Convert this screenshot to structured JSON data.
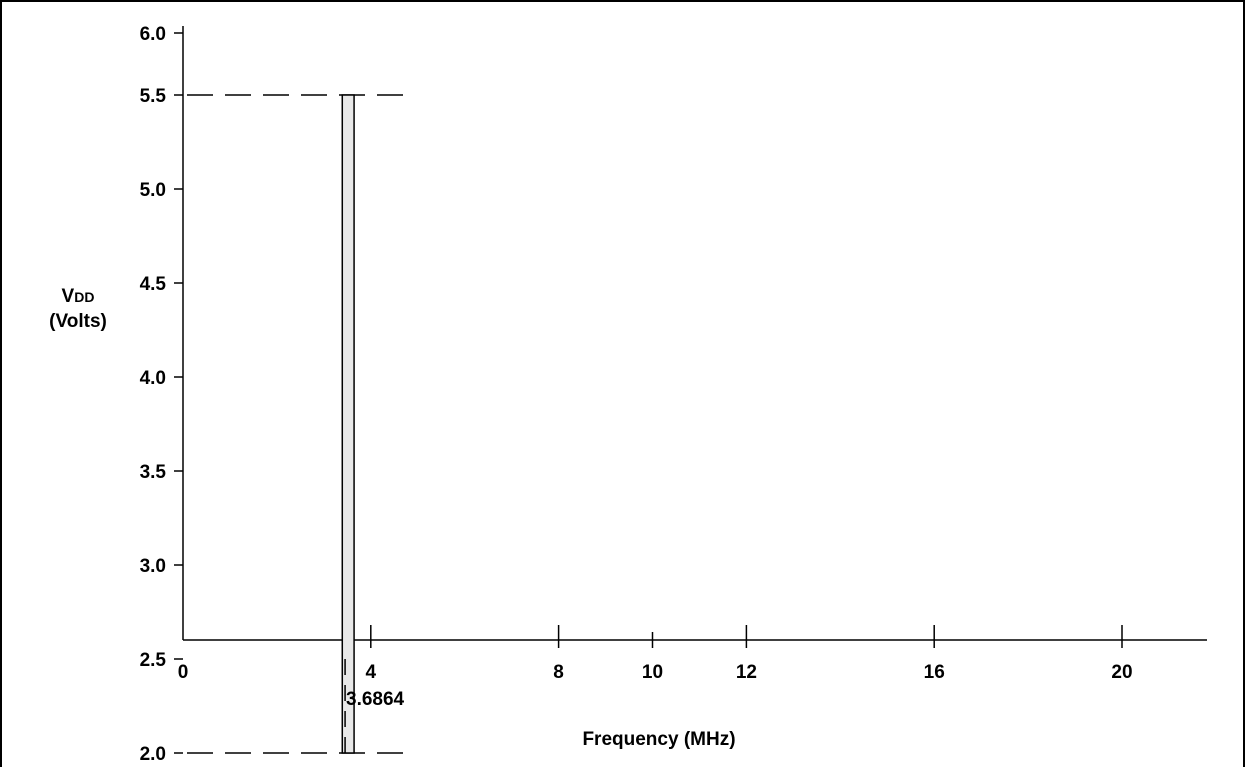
{
  "chart_data": {
    "type": "area",
    "title": "",
    "xlabel": "Frequency (MHz)",
    "ylabel_main": "V",
    "ylabel_sub": "DD",
    "ylabel_unit": "(Volts)",
    "xlim": [
      0,
      22
    ],
    "ylim": [
      1.5,
      6.0
    ],
    "x_ticks": [
      0,
      4,
      8,
      10,
      12,
      16,
      20
    ],
    "y_ticks": [
      "6.0",
      "5.5",
      "5.0",
      "4.5",
      "4.0",
      "3.5",
      "3.0",
      "2.5",
      "2.0"
    ],
    "y_tick_values": [
      6.0,
      5.5,
      5.0,
      4.5,
      4.0,
      3.5,
      3.0,
      2.5,
      2.0
    ],
    "region": {
      "x_min": 3.35,
      "x_max": 3.6864,
      "y_min": 2.0,
      "y_max": 5.5,
      "fill": "#e8e8e8"
    },
    "marked_frequency_label": "3.6864",
    "marked_frequency_value": 3.6864,
    "dashed_levels": [
      2.0,
      5.5
    ],
    "grid": false
  }
}
